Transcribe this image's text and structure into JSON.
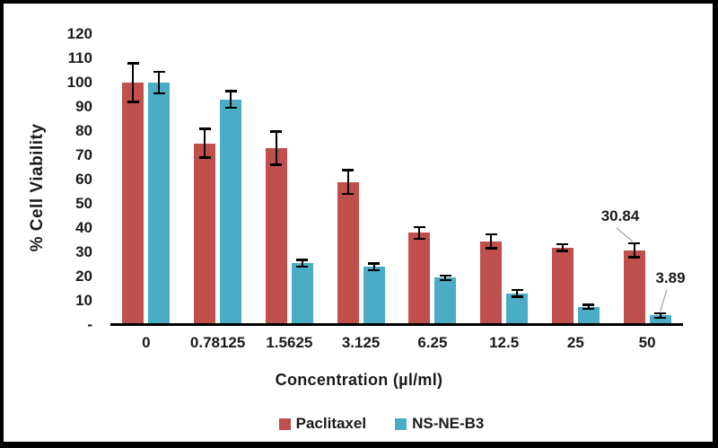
{
  "frame": {
    "border_color": "#000000",
    "background": "#ffffff"
  },
  "chart_data": {
    "type": "bar",
    "title": "",
    "xlabel": "Concentration (µl/ml)",
    "ylabel": "% Cell Viability",
    "categories": [
      "0",
      "0.78125",
      "1.5625",
      "3.125",
      "6.25",
      "12.5",
      "25",
      "50"
    ],
    "series": [
      {
        "name": "Paclitaxel",
        "color": "#C0504D",
        "values": [
          100,
          75,
          73,
          59,
          38,
          34.5,
          32,
          30.84
        ],
        "errors": [
          8,
          6,
          7,
          5,
          2.5,
          3,
          1.5,
          3
        ]
      },
      {
        "name": "NS-NE-B3",
        "color": "#4BACC6",
        "values": [
          100,
          93,
          25.5,
          24,
          19.5,
          13,
          7.5,
          3.89
        ],
        "errors": [
          4.5,
          3.5,
          1.5,
          1.5,
          1,
          1.5,
          1,
          1
        ]
      }
    ],
    "ylim": [
      0,
      120
    ],
    "ytick_step": 10,
    "ytick_labels_top_to_bottom": [
      "120",
      "110",
      "100",
      "90",
      "80",
      "70",
      "60",
      "50",
      "40",
      "30",
      "20",
      "10",
      "-"
    ],
    "grid": false,
    "legend_position": "bottom",
    "error_bars": true,
    "annotations": [
      {
        "text": "30.84",
        "series_index": 0,
        "category_index": 7
      },
      {
        "text": "3.89",
        "series_index": 1,
        "category_index": 7
      }
    ],
    "leader_line_color": "#a0a0a0"
  }
}
